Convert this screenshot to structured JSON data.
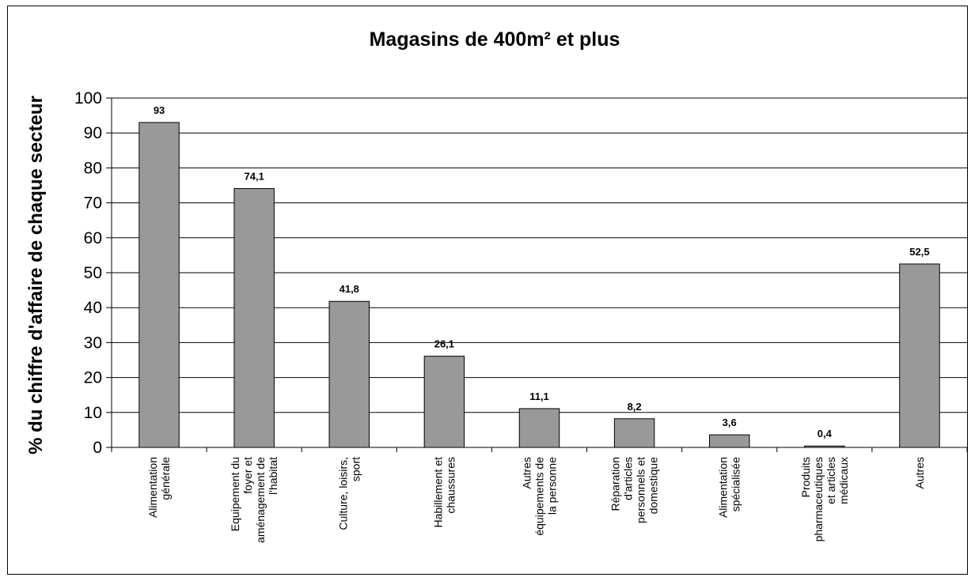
{
  "chart_data": {
    "type": "bar",
    "title": "Magasins de 400m² et plus",
    "xlabel": "",
    "ylabel": "% du chiffre d'affaire de chaque secteur",
    "ylim": [
      0,
      100
    ],
    "yticks": [
      0,
      10,
      20,
      30,
      40,
      50,
      60,
      70,
      80,
      90,
      100
    ],
    "grid": true,
    "categories": [
      [
        "Alimentation",
        "générale"
      ],
      [
        "Equipement du",
        "foyer et",
        "aménagement de",
        "l'habitat"
      ],
      [
        "Culture, loisirs,",
        "sport"
      ],
      [
        "Habillement et",
        "chaussures"
      ],
      [
        "Autres",
        "équipements de",
        "la personne"
      ],
      [
        "Réparation",
        "d'articles",
        "personnels et",
        "domestique"
      ],
      [
        "Alimentation",
        "spécialisée"
      ],
      [
        "Produits",
        "pharmaceutiques",
        "et articles",
        "médicaux"
      ],
      [
        "Autres"
      ]
    ],
    "values": [
      93,
      74.1,
      41.8,
      26.1,
      11.1,
      8.2,
      3.6,
      0.4,
      52.5
    ],
    "value_labels": [
      "93",
      "74,1",
      "41,8",
      "26,1",
      "11,1",
      "8,2",
      "3,6",
      "0,4",
      "52,5"
    ],
    "bar_color": "#999999",
    "bar_outline": "#000000",
    "gridline_color": "#000000"
  }
}
